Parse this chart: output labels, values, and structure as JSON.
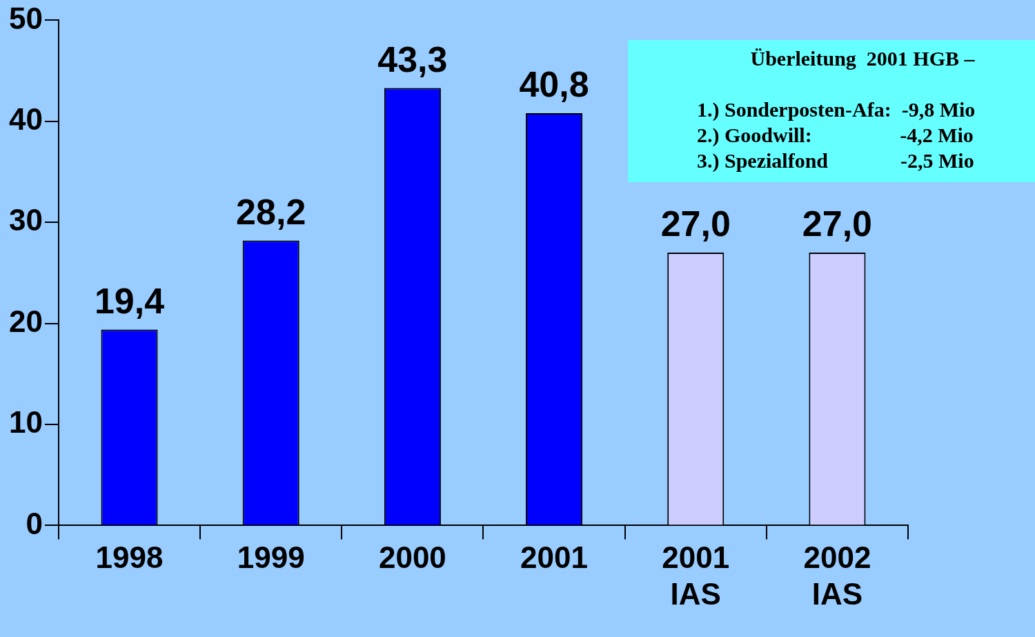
{
  "chart_data": {
    "type": "bar",
    "categories": [
      "1998",
      "1999",
      "2000",
      "2001",
      "2001 IAS",
      "2002 IAS"
    ],
    "values": [
      19.4,
      28.2,
      43.3,
      40.8,
      27.0,
      27.0
    ],
    "colors": [
      "#0000ff",
      "#0000ff",
      "#0000ff",
      "#0000ff",
      "#ccccff",
      "#ccccff"
    ],
    "value_labels": [
      "19,4",
      "28,2",
      "43,3",
      "40,8",
      "27,0",
      "27,0"
    ],
    "ylim": [
      0,
      50
    ],
    "yticks": [
      0,
      10,
      20,
      30,
      40,
      50
    ],
    "legend": false,
    "annotations": [
      "Überleitung  2001 HGB –",
      "1.) Sonderposten-Afa:  -9,8 Mio",
      "2.) Goodwill:                 -4,2 Mio",
      "3.) Spezialfond              -2,5 Mio"
    ]
  }
}
